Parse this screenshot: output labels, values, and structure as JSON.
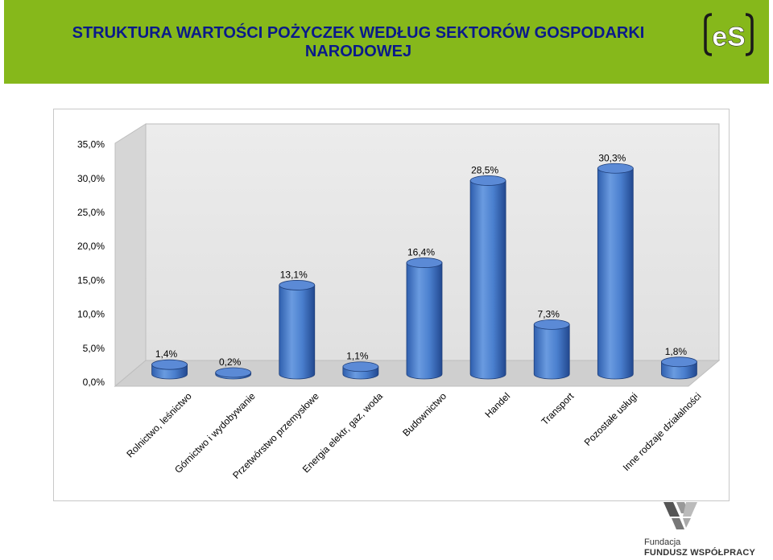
{
  "header": {
    "title_line1": "STRUKTURA WARTOŚCI POŻYCZEK WEDŁUG SEKTORÓW GOSPODARKI",
    "title_line2": "NARODOWEJ",
    "logo_text": "eS",
    "background_color": "#86b81b",
    "title_color": "#0a1a8a"
  },
  "footer": {
    "line1": "Fundacja",
    "line2": "FUNDUSZ WSPÓŁPRACY"
  },
  "chart_data": {
    "type": "bar",
    "style": "3d-cylinder",
    "categories": [
      "Rolnictwo, leśnictwo",
      "Górnictwo i wydobywanie",
      "Przetwórstwo przemysłowe",
      "Energia elektr, gaz, woda",
      "Budownictwo",
      "Handel",
      "Transport",
      "Pozostałe usługi",
      "Inne rodzaje działalności"
    ],
    "values": [
      1.4,
      0.2,
      13.1,
      1.1,
      16.4,
      28.5,
      7.3,
      30.3,
      1.8
    ],
    "value_labels": [
      "1,4%",
      "0,2%",
      "13,1%",
      "1,1%",
      "16,4%",
      "28,5%",
      "7,3%",
      "30,3%",
      "1,8%"
    ],
    "y_ticks": [
      "0,0%",
      "5,0%",
      "10,0%",
      "15,0%",
      "20,0%",
      "25,0%",
      "30,0%",
      "35,0%"
    ],
    "ylim": [
      0,
      35
    ],
    "grid": false,
    "legend": "none",
    "bar_color": "#4a7fce"
  }
}
